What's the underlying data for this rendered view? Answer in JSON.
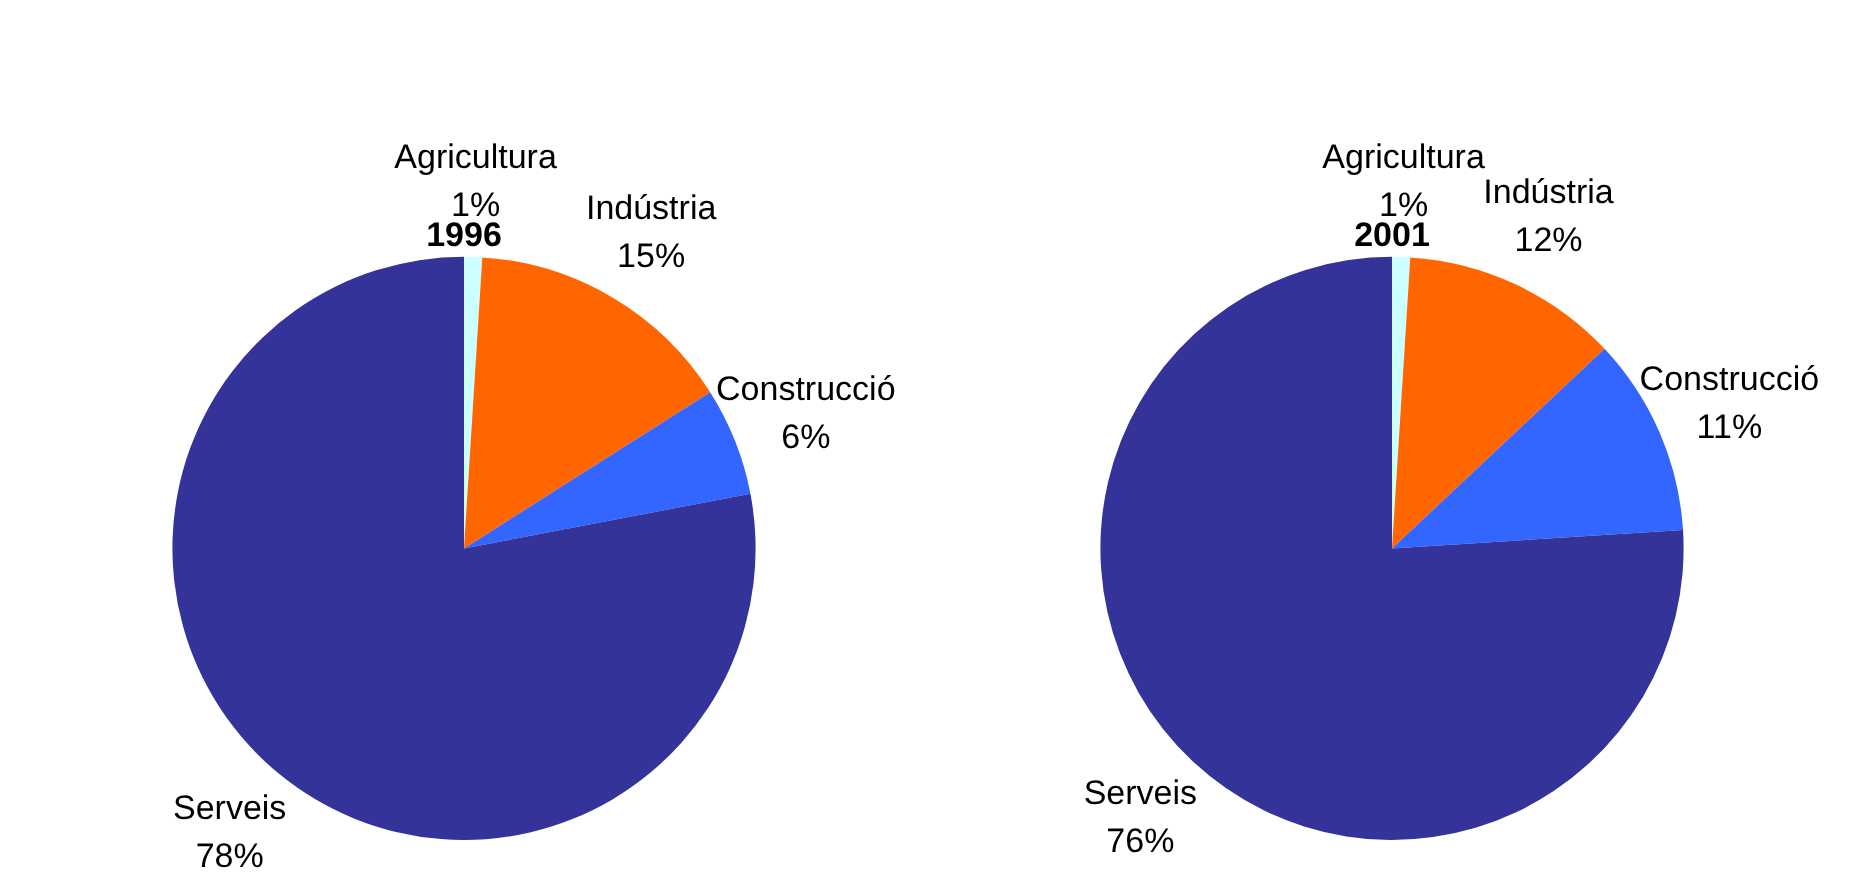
{
  "chart_data": [
    {
      "type": "pie",
      "title": "1996",
      "categories": [
        "Agricultura",
        "Indústria",
        "Construcció",
        "Serveis"
      ],
      "values": [
        1,
        15,
        6,
        78
      ],
      "value_labels": [
        "1%",
        "15%",
        "6%",
        "78%"
      ],
      "colors": [
        "#ccffff",
        "#ff6600",
        "#3366ff",
        "#333399"
      ]
    },
    {
      "type": "pie",
      "title": "2001",
      "categories": [
        "Agricultura",
        "Indústria",
        "Construcció",
        "Serveis"
      ],
      "values": [
        1,
        12,
        11,
        76
      ],
      "value_labels": [
        "1%",
        "12%",
        "11%",
        "76%"
      ],
      "colors": [
        "#ccffff",
        "#ff6600",
        "#3366ff",
        "#333399"
      ]
    }
  ]
}
